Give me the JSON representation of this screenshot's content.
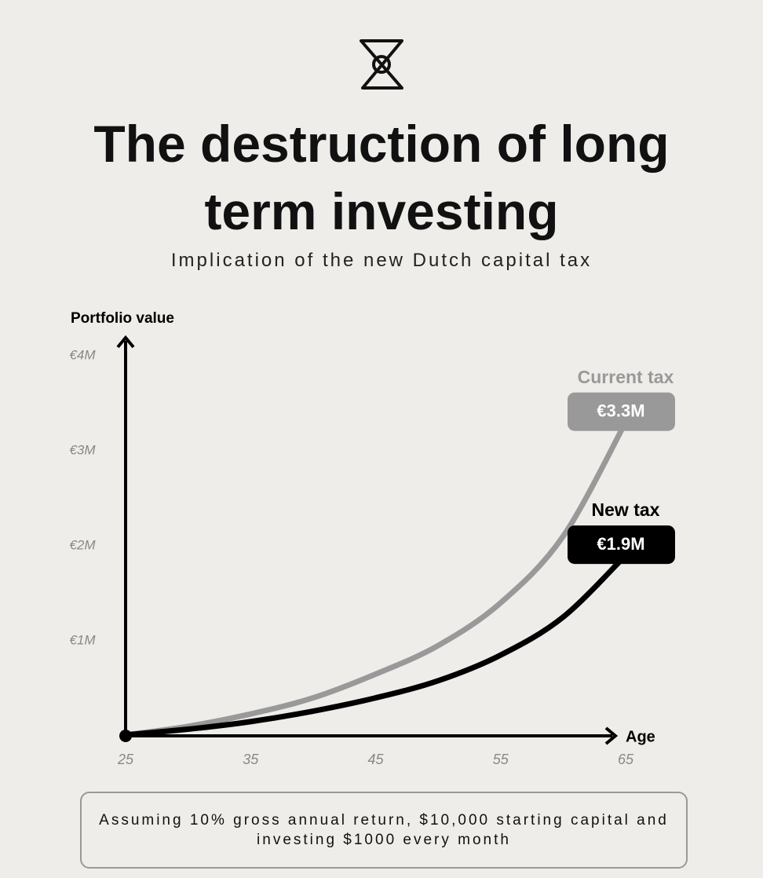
{
  "chart_data": {
    "type": "line",
    "title": "The destruction of long term investing",
    "subtitle": "Implication of the new Dutch capital tax",
    "y_label": "Portfolio value",
    "x_label": "Age",
    "x": [
      25,
      30,
      35,
      40,
      45,
      50,
      55,
      60,
      65
    ],
    "xlim": [
      25,
      65
    ],
    "xticks": [
      25,
      35,
      45,
      55,
      65
    ],
    "ylim": [
      0,
      4000000
    ],
    "yticks": [
      {
        "value": 1000000,
        "label": "€1M"
      },
      {
        "value": 2000000,
        "label": "€2M"
      },
      {
        "value": 3000000,
        "label": "€3M"
      },
      {
        "value": 4000000,
        "label": "€4M"
      }
    ],
    "series": [
      {
        "name": "Current tax",
        "color": "#999999",
        "values": [
          10000,
          100000,
          230000,
          400000,
          650000,
          950000,
          1400000,
          2100000,
          3300000
        ],
        "value_labels": [
          null,
          null,
          null,
          null,
          null,
          null,
          null,
          null,
          "€3.3M"
        ]
      },
      {
        "name": "New tax",
        "color": "#000000",
        "values": [
          10000,
          70000,
          150000,
          260000,
          400000,
          580000,
          850000,
          1250000,
          1900000
        ],
        "value_labels": [
          null,
          null,
          null,
          null,
          null,
          null,
          null,
          null,
          "€1.9M"
        ]
      }
    ],
    "note": "Assuming 10% gross annual return, $10,000 starting capital and investing $1000 every month"
  }
}
